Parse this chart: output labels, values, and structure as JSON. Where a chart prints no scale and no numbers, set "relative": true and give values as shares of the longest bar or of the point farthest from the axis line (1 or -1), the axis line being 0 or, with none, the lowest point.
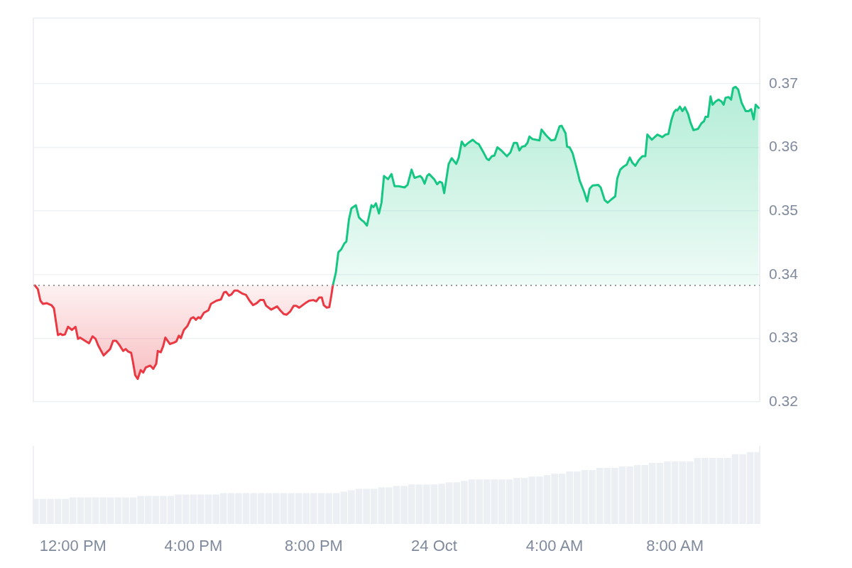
{
  "chart_data": [
    {
      "type": "area",
      "xlim": [
        "--10-23T10:41",
        "--10-24T10:49"
      ],
      "tick_labels": "y",
      "ylim": [
        0.32,
        0.3803
      ],
      "yticks": [
        0.32,
        0.33,
        0.34,
        0.35,
        0.36,
        0.37
      ],
      "grid": "y",
      "ref_lines": [
        {
          "axis": "y",
          "value": 0.3383,
          "color": "#999999",
          "line_style": "dotted"
        }
      ],
      "series": [
        {
          "color": "#ea3943",
          "x": [
            "--10-23T10:44",
            "--10-23T10:50",
            "--10-23T10:55",
            "--10-23T11:00",
            "--10-23T11:08",
            "--10-23T11:17",
            "--10-23T11:22",
            "--10-23T11:30",
            "--10-23T11:35",
            "--10-23T11:39",
            "--10-23T11:44",
            "--10-23T11:50",
            "--10-23T11:58",
            "--10-23T12:05",
            "--10-23T12:10",
            "--10-23T12:14",
            "--10-23T12:32",
            "--10-23T12:39",
            "--10-23T12:45",
            "--10-23T12:50",
            "--10-23T13:01",
            "--10-23T13:14",
            "--10-23T13:20",
            "--10-23T13:26",
            "--10-23T13:32",
            "--10-23T13:40",
            "--10-23T13:45",
            "--10-23T13:50",
            "--10-23T13:56",
            "--10-23T13:59",
            "--10-23T14:04",
            "--10-23T14:09",
            "--10-23T14:15",
            "--10-23T14:20",
            "--10-23T14:25",
            "--10-23T14:34",
            "--10-23T14:40",
            "--10-23T14:46",
            "--10-23T14:49",
            "--10-23T14:55",
            "--10-23T15:00",
            "--10-23T15:04",
            "--10-23T15:13",
            "--10-23T15:21",
            "--10-23T15:26",
            "--10-23T15:31",
            "--10-23T15:35",
            "--10-23T15:41",
            "--10-23T15:48",
            "--10-23T15:55",
            "--10-23T16:00",
            "--10-23T16:05",
            "--10-23T16:10",
            "--10-23T16:14",
            "--10-23T16:21",
            "--10-23T16:30",
            "--10-23T16:35",
            "--10-23T16:46",
            "--10-23T16:55",
            "--10-23T17:01",
            "--10-23T17:05",
            "--10-23T17:11",
            "--10-23T17:16",
            "--10-23T17:22",
            "--10-23T17:28",
            "--10-23T17:38",
            "--10-23T17:45",
            "--10-23T17:52",
            "--10-23T17:59",
            "--10-23T18:06",
            "--10-23T18:13",
            "--10-23T18:20",
            "--10-23T18:25",
            "--10-23T18:35",
            "--10-23T18:47",
            "--10-23T18:53",
            "--10-23T19:00",
            "--10-23T19:06",
            "--10-23T19:13",
            "--10-23T19:20",
            "--10-23T19:25",
            "--10-23T19:31",
            "--10-23T19:43",
            "--10-23T19:51",
            "--10-23T19:59",
            "--10-23T20:05",
            "--10-23T20:11",
            "--10-23T20:16",
            "--10-23T20:20",
            "--10-23T20:26",
            "--10-23T20:31",
            "--10-23T20:35",
            "--10-23T20:38"
          ],
          "values": [
            0.3383,
            0.3377,
            0.3359,
            0.3354,
            0.3355,
            0.3352,
            0.3347,
            0.3305,
            0.3307,
            0.3305,
            0.3306,
            0.3318,
            0.3313,
            0.3318,
            0.3299,
            0.3301,
            0.3292,
            0.3303,
            0.3299,
            0.3289,
            0.3273,
            0.3283,
            0.3296,
            0.3296,
            0.329,
            0.328,
            0.3283,
            0.3279,
            0.3277,
            0.3265,
            0.3242,
            0.3236,
            0.325,
            0.3246,
            0.3254,
            0.3257,
            0.3252,
            0.326,
            0.328,
            0.3278,
            0.3288,
            0.3301,
            0.3291,
            0.3293,
            0.3295,
            0.3304,
            0.33,
            0.3313,
            0.3319,
            0.3331,
            0.3333,
            0.3329,
            0.3333,
            0.3331,
            0.334,
            0.3344,
            0.3354,
            0.3359,
            0.3361,
            0.3372,
            0.3373,
            0.3367,
            0.3369,
            0.3375,
            0.3375,
            0.337,
            0.3368,
            0.3359,
            0.3352,
            0.3355,
            0.336,
            0.336,
            0.3351,
            0.3345,
            0.335,
            0.3344,
            0.3338,
            0.3337,
            0.3342,
            0.3351,
            0.3351,
            0.3348,
            0.3355,
            0.3359,
            0.336,
            0.3358,
            0.3364,
            0.3364,
            0.3352,
            0.3348,
            0.3349,
            0.3367,
            0.3383
          ]
        },
        {
          "color": "#16c784",
          "x": [
            "--10-23T20:38",
            "--10-23T20:44",
            "--10-23T20:49",
            "--10-23T20:55",
            "--10-23T21:01",
            "--10-23T21:05",
            "--10-23T21:10",
            "--10-23T21:15",
            "--10-23T21:24",
            "--10-23T21:30",
            "--10-23T21:35",
            "--10-23T21:40",
            "--10-23T21:46",
            "--10-23T21:55",
            "--10-23T21:59",
            "--10-23T22:04",
            "--10-23T22:10",
            "--10-23T22:15",
            "--10-23T22:20",
            "--10-23T22:28",
            "--10-23T22:35",
            "--10-23T22:41",
            "--10-23T22:49",
            "--10-23T23:01",
            "--10-23T23:07",
            "--10-23T23:15",
            "--10-23T23:21",
            "--10-23T23:32",
            "--10-23T23:36",
            "--10-23T23:41",
            "--10-23T23:46",
            "--10-23T23:50",
            "--10-24T00:00",
            "--10-24T00:06",
            "--10-24T00:11",
            "--10-24T00:16",
            "--10-24T00:20",
            "--10-24T00:29",
            "--10-24T00:35",
            "--10-24T00:44",
            "--10-24T00:49",
            "--10-24T00:55",
            "--10-24T01:01",
            "--10-24T01:08",
            "--10-24T01:17",
            "--10-24T01:24",
            "--10-24T01:29",
            "--10-24T01:39",
            "--10-24T01:45",
            "--10-24T01:49",
            "--10-24T01:55",
            "--10-24T02:00",
            "--10-24T02:06",
            "--10-24T02:14",
            "--10-24T02:25",
            "--10-24T02:32",
            "--10-24T02:39",
            "--10-24T02:45",
            "--10-24T02:50",
            "--10-24T02:55",
            "--10-24T03:01",
            "--10-24T03:06",
            "--10-24T03:10",
            "--10-24T03:16",
            "--10-24T03:30",
            "--10-24T03:34",
            "--10-24T03:43",
            "--10-24T03:53",
            "--10-24T04:01",
            "--10-24T04:10",
            "--10-24T04:14",
            "--10-24T04:22",
            "--10-24T04:25",
            "--10-24T04:30",
            "--10-24T04:36",
            "--10-24T04:42",
            "--10-24T04:47",
            "--10-24T04:50",
            "--10-24T04:59",
            "--10-24T05:05",
            "--10-24T05:10",
            "--10-24T05:16",
            "--10-24T05:27",
            "--10-24T05:32",
            "--10-24T05:40",
            "--10-24T05:46",
            "--10-24T05:53",
            "--10-24T06:01",
            "--10-24T06:05",
            "--10-24T06:11",
            "--10-24T06:18",
            "--10-24T06:24",
            "--10-24T06:30",
            "--10-24T06:35",
            "--10-24T06:41",
            "--10-24T06:48",
            "--10-24T06:55",
            "--10-24T07:01",
            "--10-24T07:05",
            "--10-24T07:14",
            "--10-24T07:25",
            "--10-24T07:35",
            "--10-24T07:41",
            "--10-24T07:47",
            "--10-24T07:53",
            "--10-24T07:58",
            "--10-24T08:02",
            "--10-24T08:05",
            "--10-24T08:10",
            "--10-24T08:15",
            "--10-24T08:20",
            "--10-24T08:26",
            "--10-24T08:31",
            "--10-24T08:37",
            "--10-24T08:46",
            "--10-24T08:53",
            "--10-24T08:58",
            "--10-24T09:01",
            "--10-24T09:06",
            "--10-24T09:11",
            "--10-24T09:15",
            "--10-24T09:21",
            "--10-24T09:27",
            "--10-24T09:33",
            "--10-24T09:37",
            "--10-24T09:41",
            "--10-24T09:47",
            "--10-24T09:52",
            "--10-24T09:56",
            "--10-24T10:01",
            "--10-24T10:06",
            "--10-24T10:13",
            "--10-24T10:21",
            "--10-24T10:27",
            "--10-24T10:32",
            "--10-24T10:37",
            "--10-24T10:41",
            "--10-24T10:47"
          ],
          "values": [
            0.3383,
            0.3403,
            0.3435,
            0.344,
            0.3449,
            0.3452,
            0.3486,
            0.3504,
            0.3509,
            0.349,
            0.3486,
            0.3483,
            0.3477,
            0.3509,
            0.3506,
            0.3512,
            0.3496,
            0.3513,
            0.3555,
            0.355,
            0.3558,
            0.3539,
            0.3539,
            0.3537,
            0.3541,
            0.3565,
            0.3552,
            0.3555,
            0.3552,
            0.3543,
            0.3555,
            0.3558,
            0.355,
            0.3542,
            0.3546,
            0.3544,
            0.3528,
            0.3574,
            0.3583,
            0.3574,
            0.3584,
            0.3609,
            0.3602,
            0.3607,
            0.3612,
            0.3607,
            0.3605,
            0.3591,
            0.3582,
            0.358,
            0.3586,
            0.3587,
            0.36,
            0.3595,
            0.3586,
            0.3592,
            0.3607,
            0.3607,
            0.3595,
            0.3601,
            0.3602,
            0.3607,
            0.3617,
            0.3613,
            0.3611,
            0.3628,
            0.3619,
            0.3611,
            0.3612,
            0.3633,
            0.3634,
            0.3622,
            0.3601,
            0.36,
            0.3591,
            0.3573,
            0.3558,
            0.3548,
            0.353,
            0.3515,
            0.3535,
            0.354,
            0.3541,
            0.3537,
            0.3517,
            0.3513,
            0.3518,
            0.3523,
            0.3551,
            0.3565,
            0.357,
            0.3573,
            0.3584,
            0.3576,
            0.3571,
            0.358,
            0.3586,
            0.3586,
            0.362,
            0.3612,
            0.362,
            0.3616,
            0.362,
            0.3621,
            0.3643,
            0.3655,
            0.3659,
            0.3658,
            0.3664,
            0.3657,
            0.3663,
            0.3653,
            0.3639,
            0.3627,
            0.3629,
            0.3638,
            0.3641,
            0.3648,
            0.3648,
            0.368,
            0.3667,
            0.3672,
            0.3675,
            0.3672,
            0.3667,
            0.3678,
            0.3679,
            0.3675,
            0.3693,
            0.3695,
            0.3691,
            0.367,
            0.3657,
            0.3657,
            0.366,
            0.3644,
            0.3667,
            0.3662
          ]
        }
      ]
    },
    {
      "type": "bar",
      "relative": true,
      "color": "#eceff3",
      "xlim": [
        "--10-23T10:41",
        "--10-24T10:49"
      ],
      "xticks": [
        {
          "value": "--10-23T12:00",
          "label": "12:00 PM"
        },
        {
          "value": "--10-23T16:00",
          "label": "4:00 PM"
        },
        {
          "value": "--10-23T20:00",
          "label": "8:00 PM"
        },
        {
          "value": "--10-24T00:00",
          "label": "24 Oct"
        },
        {
          "value": "--10-24T04:00",
          "label": "4:00 AM"
        },
        {
          "value": "--10-24T08:00",
          "label": "8:00 AM"
        }
      ],
      "tick_labels": "x",
      "x": [
        "--10-23T10:45",
        "--10-23T11:00",
        "--10-23T11:15",
        "--10-23T11:30",
        "--10-23T11:45",
        "--10-23T12:00",
        "--10-23T12:15",
        "--10-23T12:30",
        "--10-23T12:45",
        "--10-23T13:00",
        "--10-23T13:15",
        "--10-23T13:30",
        "--10-23T13:45",
        "--10-23T14:00",
        "--10-23T14:15",
        "--10-23T14:30",
        "--10-23T14:45",
        "--10-23T15:00",
        "--10-23T15:15",
        "--10-23T15:30",
        "--10-23T15:45",
        "--10-23T16:00",
        "--10-23T16:15",
        "--10-23T16:30",
        "--10-23T16:45",
        "--10-23T17:00",
        "--10-23T17:15",
        "--10-23T17:30",
        "--10-23T17:45",
        "--10-23T18:00",
        "--10-23T18:15",
        "--10-23T18:30",
        "--10-23T18:45",
        "--10-23T19:00",
        "--10-23T19:15",
        "--10-23T19:30",
        "--10-23T19:45",
        "--10-23T20:00",
        "--10-23T20:15",
        "--10-23T20:30",
        "--10-23T20:45",
        "--10-23T21:00",
        "--10-23T21:15",
        "--10-23T21:30",
        "--10-23T21:45",
        "--10-23T22:00",
        "--10-23T22:15",
        "--10-23T22:30",
        "--10-23T22:45",
        "--10-23T23:00",
        "--10-23T23:15",
        "--10-23T23:30",
        "--10-23T23:45",
        "--10-24T00:00",
        "--10-24T00:15",
        "--10-24T00:30",
        "--10-24T00:45",
        "--10-24T01:00",
        "--10-24T01:15",
        "--10-24T01:30",
        "--10-24T01:45",
        "--10-24T02:00",
        "--10-24T02:15",
        "--10-24T02:30",
        "--10-24T02:45",
        "--10-24T03:00",
        "--10-24T03:15",
        "--10-24T03:30",
        "--10-24T03:45",
        "--10-24T04:00",
        "--10-24T04:15",
        "--10-24T04:30",
        "--10-24T04:45",
        "--10-24T05:00",
        "--10-24T05:15",
        "--10-24T05:30",
        "--10-24T05:45",
        "--10-24T06:00",
        "--10-24T06:15",
        "--10-24T06:30",
        "--10-24T06:45",
        "--10-24T07:00",
        "--10-24T07:15",
        "--10-24T07:30",
        "--10-24T07:45",
        "--10-24T08:00",
        "--10-24T08:15",
        "--10-24T08:30",
        "--10-24T08:45",
        "--10-24T09:00",
        "--10-24T09:15",
        "--10-24T09:30",
        "--10-24T09:45",
        "--10-24T10:00",
        "--10-24T10:15",
        "--10-24T10:30",
        "--10-24T10:45"
      ],
      "values": [
        0.35,
        0.35,
        0.35,
        0.35,
        0.35,
        0.37,
        0.37,
        0.37,
        0.37,
        0.37,
        0.37,
        0.37,
        0.37,
        0.37,
        0.39,
        0.39,
        0.39,
        0.39,
        0.39,
        0.41,
        0.41,
        0.41,
        0.41,
        0.41,
        0.41,
        0.43,
        0.43,
        0.43,
        0.43,
        0.43,
        0.43,
        0.43,
        0.43,
        0.43,
        0.43,
        0.43,
        0.43,
        0.43,
        0.43,
        0.43,
        0.43,
        0.45,
        0.47,
        0.49,
        0.49,
        0.49,
        0.51,
        0.51,
        0.53,
        0.53,
        0.55,
        0.55,
        0.55,
        0.55,
        0.56,
        0.58,
        0.58,
        0.6,
        0.62,
        0.62,
        0.62,
        0.62,
        0.62,
        0.62,
        0.64,
        0.64,
        0.66,
        0.66,
        0.68,
        0.7,
        0.7,
        0.73,
        0.73,
        0.75,
        0.75,
        0.78,
        0.78,
        0.78,
        0.8,
        0.8,
        0.82,
        0.82,
        0.85,
        0.85,
        0.87,
        0.87,
        0.87,
        0.87,
        0.92,
        0.92,
        0.92,
        0.92,
        0.92,
        0.97,
        0.97,
        1,
        1
      ]
    }
  ]
}
